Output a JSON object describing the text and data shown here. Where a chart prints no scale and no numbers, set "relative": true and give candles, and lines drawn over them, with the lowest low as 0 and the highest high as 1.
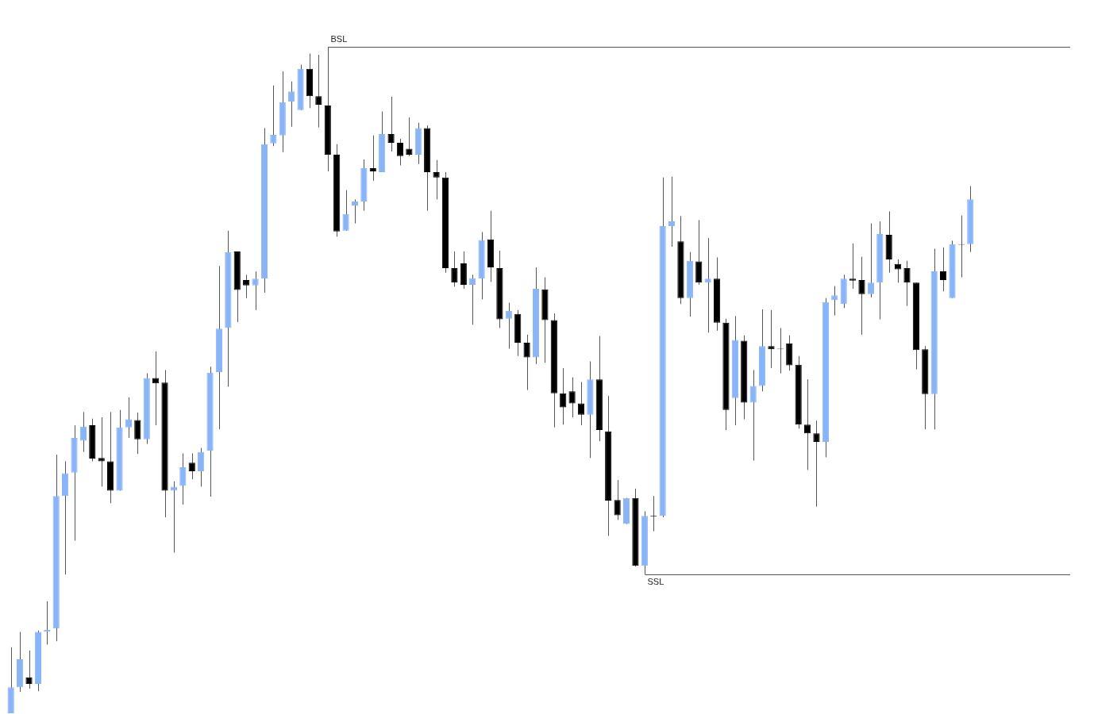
{
  "chart_data": {
    "type": "candlestick",
    "relative": true,
    "legend": false,
    "categories": [
      null,
      null,
      null,
      null,
      null,
      null,
      null,
      null,
      null,
      null,
      null,
      null,
      null,
      null,
      null,
      null,
      null,
      null,
      null,
      null,
      null,
      null,
      null,
      null,
      null,
      null,
      null,
      null,
      null,
      null,
      null,
      null,
      null,
      null,
      null,
      null,
      null,
      null,
      null,
      null,
      null,
      null,
      null,
      null,
      null,
      null,
      null,
      null,
      null,
      null,
      null,
      null,
      null,
      null,
      null,
      null,
      null,
      null,
      null,
      null,
      null,
      null,
      null,
      null,
      null,
      null,
      null,
      null,
      null,
      null,
      null,
      null,
      null,
      null,
      null,
      null,
      null,
      null,
      null,
      null,
      null,
      null,
      null,
      null,
      null,
      null,
      null,
      null,
      null,
      null,
      null,
      null,
      null,
      null,
      null,
      null,
      null,
      null,
      null,
      null,
      null,
      null,
      null,
      null,
      null,
      null,
      null
    ],
    "ohlc": [
      [
        0,
        0.099,
        0,
        0.039
      ],
      [
        0.039,
        0.122,
        0.032,
        0.081
      ],
      [
        0.054,
        0.094,
        0.037,
        0.044
      ],
      [
        0.044,
        0.124,
        0.033,
        0.122
      ],
      [
        0.122,
        0.168,
        0.103,
        0.125
      ],
      [
        0.127,
        0.388,
        0.108,
        0.326
      ],
      [
        0.326,
        0.378,
        0.208,
        0.36
      ],
      [
        0.361,
        0.432,
        0.259,
        0.413
      ],
      [
        0.409,
        0.452,
        0.392,
        0.43
      ],
      [
        0.432,
        0.442,
        0.378,
        0.382
      ],
      [
        0.383,
        0.444,
        0.34,
        0.378
      ],
      [
        0.378,
        0.452,
        0.315,
        0.334
      ],
      [
        0.334,
        0.455,
        0.334,
        0.429
      ],
      [
        0.429,
        0.474,
        0.413,
        0.441
      ],
      [
        0.44,
        0.451,
        0.389,
        0.411
      ],
      [
        0.411,
        0.51,
        0.404,
        0.503
      ],
      [
        0.503,
        0.543,
        0.432,
        0.495
      ],
      [
        0.496,
        0.515,
        0.294,
        0.334
      ],
      [
        0.334,
        0.348,
        0.241,
        0.34
      ],
      [
        0.341,
        0.39,
        0.313,
        0.369
      ],
      [
        0.376,
        0.39,
        0.351,
        0.363
      ],
      [
        0.363,
        0.398,
        0.34,
        0.392
      ],
      [
        0.394,
        0.52,
        0.325,
        0.511
      ],
      [
        0.512,
        0.671,
        0.426,
        0.577
      ],
      [
        0.578,
        0.724,
        0.49,
        0.692
      ],
      [
        0.693,
        0.693,
        0.587,
        0.635
      ],
      [
        0.65,
        0.658,
        0.623,
        0.642
      ],
      [
        0.642,
        0.663,
        0.605,
        0.652
      ],
      [
        0.652,
        0.878,
        0.631,
        0.854
      ],
      [
        0.855,
        0.942,
        0.851,
        0.868
      ],
      [
        0.867,
        0.963,
        0.842,
        0.917
      ],
      [
        0.918,
        0.948,
        0.88,
        0.933
      ],
      [
        0.905,
        0.973,
        0.905,
        0.967
      ],
      [
        0.967,
        0.99,
        0.908,
        0.926
      ],
      [
        0.926,
        0.988,
        0.879,
        0.913
      ],
      [
        0.912,
        1,
        0.813,
        0.838
      ],
      [
        0.838,
        0.854,
        0.715,
        0.723
      ],
      [
        0.724,
        0.785,
        0.724,
        0.749
      ],
      [
        0.762,
        0.771,
        0.735,
        0.768
      ],
      [
        0.768,
        0.831,
        0.754,
        0.818
      ],
      [
        0.818,
        0.867,
        0.799,
        0.813
      ],
      [
        0.812,
        0.903,
        0.812,
        0.869
      ],
      [
        0.869,
        0.925,
        0.843,
        0.856
      ],
      [
        0.856,
        0.862,
        0.822,
        0.836
      ],
      [
        0.847,
        0.894,
        0.836,
        0.838
      ],
      [
        0.838,
        0.886,
        0.824,
        0.878
      ],
      [
        0.878,
        0.882,
        0.754,
        0.812
      ],
      [
        0.812,
        0.83,
        0.771,
        0.804
      ],
      [
        0.804,
        0.812,
        0.661,
        0.668
      ],
      [
        0.668,
        0.693,
        0.64,
        0.646
      ],
      [
        0.675,
        0.693,
        0.637,
        0.643
      ],
      [
        0.643,
        0.658,
        0.583,
        0.653
      ],
      [
        0.652,
        0.722,
        0.621,
        0.71
      ],
      [
        0.711,
        0.754,
        0.647,
        0.669
      ],
      [
        0.668,
        0.694,
        0.578,
        0.591
      ],
      [
        0.592,
        0.616,
        0.547,
        0.604
      ],
      [
        0.599,
        0.605,
        0.536,
        0.556
      ],
      [
        0.556,
        0.568,
        0.485,
        0.534
      ],
      [
        0.534,
        0.669,
        0.524,
        0.637
      ],
      [
        0.636,
        0.654,
        0.526,
        0.59
      ],
      [
        0.59,
        0.6,
        0.429,
        0.48
      ],
      [
        0.48,
        0.518,
        0.433,
        0.459
      ],
      [
        0.483,
        0.504,
        0.444,
        0.465
      ],
      [
        0.465,
        0.497,
        0.432,
        0.448
      ],
      [
        0.448,
        0.528,
        0.383,
        0.501
      ],
      [
        0.501,
        0.566,
        0.408,
        0.425
      ],
      [
        0.423,
        0.476,
        0.266,
        0.319
      ],
      [
        0.32,
        0.35,
        0.29,
        0.297
      ],
      [
        0.284,
        0.323,
        0.284,
        0.323
      ],
      [
        0.323,
        0.337,
        0.22,
        0.221
      ],
      [
        0.221,
        0.303,
        0.208,
        0.296
      ],
      [
        0.296,
        0.326,
        0.273,
        0.295
      ],
      [
        0.296,
        0.804,
        0.294,
        0.731
      ],
      [
        0.731,
        0.805,
        0.7,
        0.738
      ],
      [
        0.708,
        0.746,
        0.614,
        0.623
      ],
      [
        0.623,
        0.692,
        0.595,
        0.679
      ],
      [
        0.678,
        0.74,
        0.643,
        0.646
      ],
      [
        0.646,
        0.713,
        0.571,
        0.652
      ],
      [
        0.652,
        0.684,
        0.574,
        0.586
      ],
      [
        0.586,
        0.592,
        0.425,
        0.455
      ],
      [
        0.473,
        0.596,
        0.432,
        0.56
      ],
      [
        0.559,
        0.567,
        0.441,
        0.466
      ],
      [
        0.466,
        0.515,
        0.379,
        0.491
      ],
      [
        0.491,
        0.606,
        0.483,
        0.551
      ],
      [
        0.551,
        0.605,
        0.518,
        0.546
      ],
      [
        0.547,
        0.578,
        0.51,
        0.546
      ],
      [
        0.555,
        0.567,
        0.514,
        0.522
      ],
      [
        0.523,
        0.536,
        0.427,
        0.433
      ],
      [
        0.433,
        0.501,
        0.365,
        0.42
      ],
      [
        0.42,
        0.439,
        0.31,
        0.407
      ],
      [
        0.407,
        0.623,
        0.384,
        0.617
      ],
      [
        0.62,
        0.641,
        0.597,
        0.627
      ],
      [
        0.614,
        0.658,
        0.608,
        0.652
      ],
      [
        0.652,
        0.705,
        0.637,
        0.649
      ],
      [
        0.65,
        0.685,
        0.568,
        0.629
      ],
      [
        0.629,
        0.735,
        0.624,
        0.646
      ],
      [
        0.646,
        0.738,
        0.591,
        0.719
      ],
      [
        0.718,
        0.753,
        0.661,
        0.681
      ],
      [
        0.674,
        0.681,
        0.646,
        0.666
      ],
      [
        0.668,
        0.679,
        0.611,
        0.646
      ],
      [
        0.646,
        0.646,
        0.516,
        0.545
      ],
      [
        0.546,
        0.551,
        0.426,
        0.479
      ],
      [
        0.479,
        0.697,
        0.426,
        0.663
      ],
      [
        0.663,
        0.699,
        0.633,
        0.65
      ],
      [
        0.623,
        0.709,
        0.623,
        0.704
      ],
      [
        0.704,
        0.747,
        0.654,
        0.703
      ],
      [
        0.704,
        0.791,
        0.692,
        0.771
      ]
    ],
    "colors": [
      "#8ab4f8",
      "#8ab4f8",
      "#000000",
      "#8ab4f8",
      "#8ab4f8",
      "#8ab4f8",
      "#8ab4f8",
      "#8ab4f8",
      "#8ab4f8",
      "#000000",
      "#000000",
      "#000000",
      "#8ab4f8",
      "#8ab4f8",
      "#000000",
      "#8ab4f8",
      "#000000",
      "#000000",
      "#8ab4f8",
      "#8ab4f8",
      "#000000",
      "#8ab4f8",
      "#8ab4f8",
      "#8ab4f8",
      "#8ab4f8",
      "#000000",
      "#000000",
      "#8ab4f8",
      "#8ab4f8",
      "#8ab4f8",
      "#8ab4f8",
      "#8ab4f8",
      "#8ab4f8",
      "#000000",
      "#000000",
      "#000000",
      "#000000",
      "#8ab4f8",
      "#8ab4f8",
      "#8ab4f8",
      "#000000",
      "#8ab4f8",
      "#000000",
      "#000000",
      "#000000",
      "#8ab4f8",
      "#000000",
      "#000000",
      "#000000",
      "#000000",
      "#000000",
      "#8ab4f8",
      "#8ab4f8",
      "#000000",
      "#000000",
      "#8ab4f8",
      "#000000",
      "#000000",
      "#8ab4f8",
      "#000000",
      "#000000",
      "#000000",
      "#000000",
      "#000000",
      "#8ab4f8",
      "#000000",
      "#000000",
      "#000000",
      "#8ab4f8",
      "#000000",
      "#8ab4f8",
      "#000000",
      "#8ab4f8",
      "#8ab4f8",
      "#000000",
      "#8ab4f8",
      "#000000",
      "#8ab4f8",
      "#000000",
      "#000000",
      "#8ab4f8",
      "#000000",
      "#8ab4f8",
      "#8ab4f8",
      "#000000",
      "#000000",
      "#000000",
      "#000000",
      "#000000",
      "#000000",
      "#8ab4f8",
      "#8ab4f8",
      "#8ab4f8",
      "#000000",
      "#000000",
      "#8ab4f8",
      "#8ab4f8",
      "#000000",
      "#000000",
      "#000000",
      "#000000",
      "#000000",
      "#8ab4f8",
      "#000000",
      "#8ab4f8",
      "#000000",
      "#8ab4f8"
    ],
    "ref_lines": [
      {
        "axis": "y",
        "value": 1,
        "label": "BSL",
        "color": "#555555"
      },
      {
        "axis": "y",
        "value": 0.208,
        "label": "SSL",
        "color": "#555555"
      }
    ]
  }
}
